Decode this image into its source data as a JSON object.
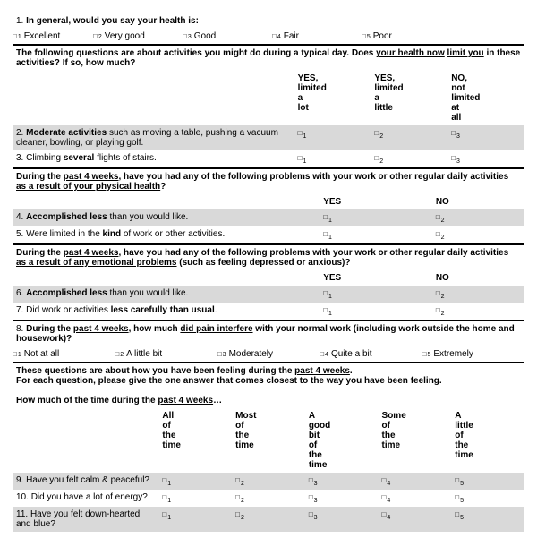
{
  "q1": {
    "num": "1.",
    "text": "In general, would you say your health is",
    "opts": [
      "Excellent",
      "Very good",
      "Good",
      "Fair",
      "Poor"
    ]
  },
  "intro2": {
    "line1": "The following questions are about activities you might do during a typical day. Does ",
    "u1": "your health now",
    "line2": "limit you",
    "rest": " in these activities?  If so, how much?"
  },
  "headers3": [
    "YES, limited a lot",
    "YES, limited a little",
    "NO, not limited at all"
  ],
  "q2": {
    "num": "2.",
    "b1": "Moderate activities",
    "rest": " such as moving a table, pushing a vacuum cleaner, bowling, or playing golf."
  },
  "q3": {
    "num": "3.",
    "pre": "Climbing ",
    "b1": "several",
    "rest": " flights of stairs."
  },
  "intro4": {
    "pre": "During the ",
    "u1": "past 4 weeks",
    "mid": ", have you had any of the following problems with your work or other regular daily activities ",
    "u2": "as a result of your physical health",
    "end": "?"
  },
  "headersYN": [
    "YES",
    "NO"
  ],
  "q4": {
    "num": "4.",
    "b1": "Accomplished less",
    "rest": " than you would like."
  },
  "q5": {
    "num": "5.",
    "pre": "Were limited in the ",
    "b1": "kind",
    "rest": " of work or other activities."
  },
  "intro5": {
    "pre": "During the ",
    "u1": "past 4 weeks",
    "mid": ", have you had any of the following problems with your work or other regular daily activities ",
    "u2": "as a result of any emotional problems",
    "end": " (such as feeling depressed or anxious)?"
  },
  "q6": {
    "num": "6.",
    "b1": "Accomplished less",
    "rest": " than you would like."
  },
  "q7": {
    "num": "7.",
    "pre": "Did work or activities ",
    "b1": "less carefully than usual",
    "rest": "."
  },
  "q8": {
    "num": "8.",
    "pre": "During the ",
    "u1": "past 4 weeks",
    "mid": ", how much ",
    "u2": "did pain interfere",
    "rest": " with your normal work (including work outside the home and housework)?"
  },
  "q8opts": [
    "Not at all",
    "A little bit",
    "Moderately",
    "Quite a bit",
    "Extremely"
  ],
  "intro6": {
    "l1pre": "These questions are about how you have been feeling during the ",
    "l1u": "past 4 weeks",
    "l1end": ".",
    "l2": "For each question, please give the one answer that comes closest to the way you have been feeling.",
    "l3pre": "How much of the time during the ",
    "l3u": "past 4 weeks",
    "l3end": "…"
  },
  "headers5": [
    "All of the time",
    "Most of the time",
    "A good bit of the time",
    "Some of the time",
    "A little of the time"
  ],
  "q9": {
    "num": "9.",
    "text": "Have you felt calm & peaceful?"
  },
  "q10": {
    "num": "10.",
    "text": "Did you have a lot of energy?"
  },
  "q11": {
    "num": "11.",
    "text": "Have you felt down-hearted and blue?"
  },
  "cb_glyph": "□"
}
